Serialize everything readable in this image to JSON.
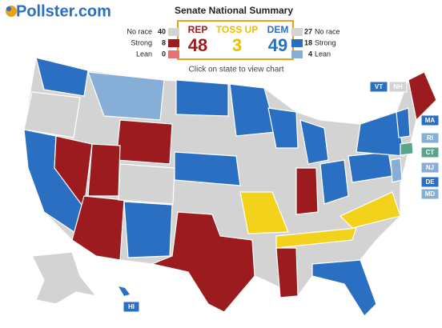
{
  "logo": "Pollster.com",
  "title": "Senate National Summary",
  "rep": {
    "label": "REP",
    "total": 48,
    "rows": [
      {
        "label": "No race",
        "value": 40
      },
      {
        "label": "Strong",
        "value": 8
      },
      {
        "label": "Lean",
        "value": 0
      }
    ]
  },
  "tossup": {
    "label": "TOSS UP",
    "total": 3
  },
  "dem": {
    "label": "DEM",
    "total": 49,
    "rows": [
      {
        "label": "No race",
        "value": 27
      },
      {
        "label": "Strong",
        "value": 18
      },
      {
        "label": "Lean",
        "value": 4
      }
    ]
  },
  "hint": "Click on state to view chart",
  "state_labels": [
    "VT",
    "NH",
    "MA",
    "RI",
    "CT",
    "NJ",
    "DE",
    "MD",
    "HI"
  ]
}
